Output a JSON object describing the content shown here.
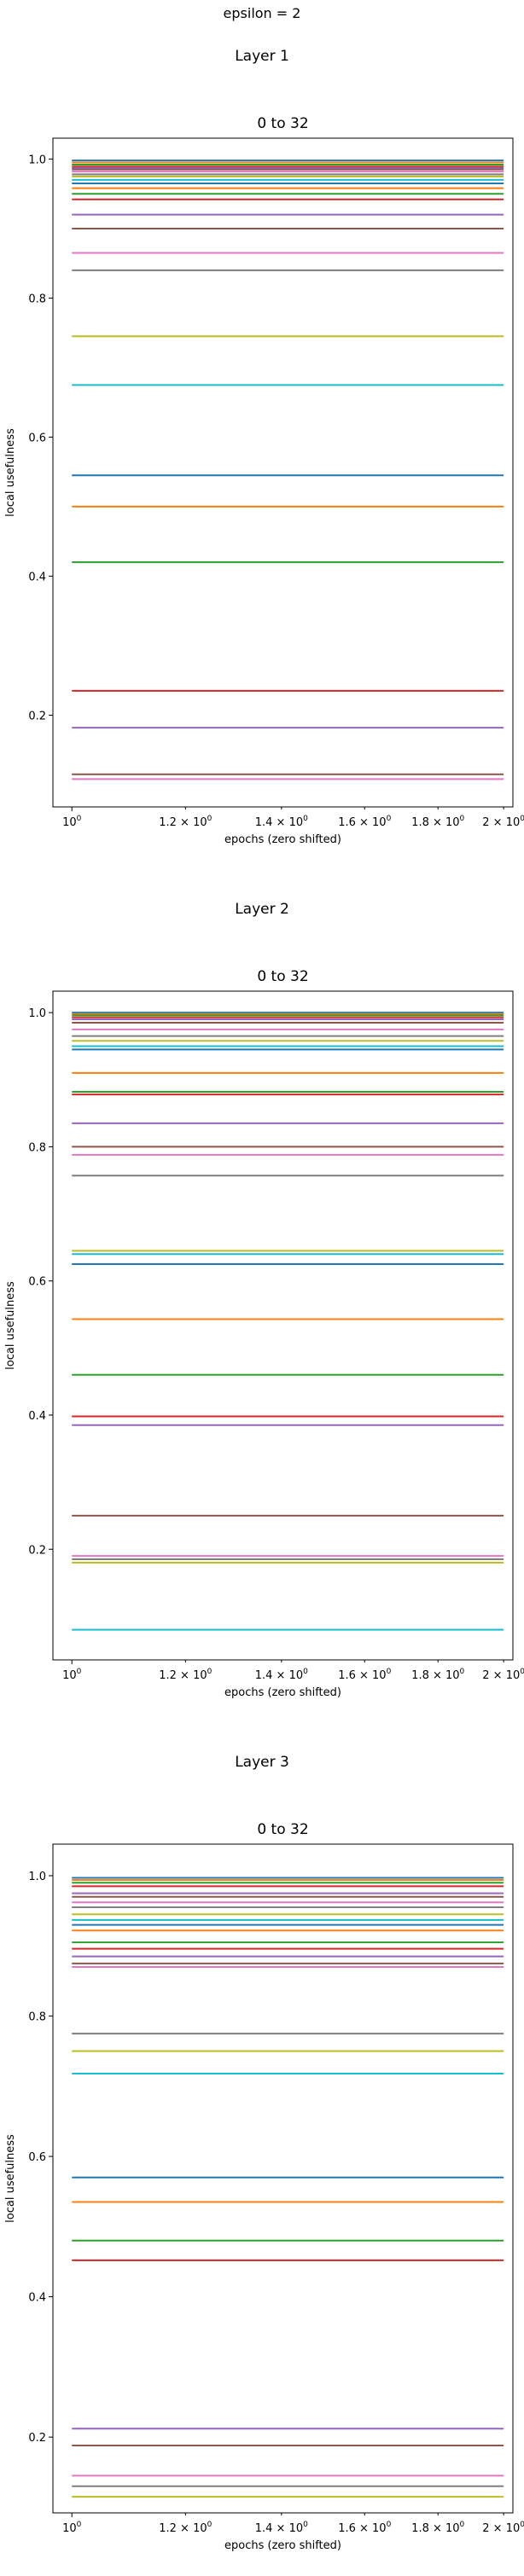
{
  "page": {
    "suptitle": "epsilon = 2"
  },
  "subplots": [
    {
      "layer_title": "Layer 1"
    },
    {
      "layer_title": "Layer 2"
    },
    {
      "layer_title": "Layer 3"
    }
  ],
  "chart_data": [
    {
      "type": "line",
      "title": "0 to 32",
      "xlabel": "epochs (zero shifted)",
      "ylabel": "local usefulness",
      "xscale": "log",
      "xlim": [
        0.97,
        2.03
      ],
      "ylim": [
        0.068,
        1.03
      ],
      "x": [
        1,
        2
      ],
      "x_ticks": [
        1.0,
        1.2,
        1.4,
        1.6,
        1.8,
        2.0
      ],
      "x_tick_labels": [
        {
          "base": "10",
          "exp": "0"
        },
        {
          "base": "1.2 × 10",
          "exp": "0"
        },
        {
          "base": "1.4 × 10",
          "exp": "0"
        },
        {
          "base": "1.6 × 10",
          "exp": "0"
        },
        {
          "base": "1.8 × 10",
          "exp": "0"
        },
        {
          "base": "2 × 10",
          "exp": "0"
        }
      ],
      "y_ticks": [
        0.2,
        0.4,
        0.6,
        0.8,
        1.0
      ],
      "y_tick_labels": [
        "0.2",
        "0.4",
        "0.6",
        "0.8",
        "1.0"
      ],
      "grid": false,
      "colors": [
        "#1f77b4",
        "#ff7f0e",
        "#2ca02c",
        "#d62728",
        "#9467bd",
        "#8c564b",
        "#e377c2",
        "#7f7f7f",
        "#bcbd22",
        "#17becf"
      ],
      "series_values": [
        0.998,
        0.995,
        0.992,
        0.989,
        0.987,
        0.985,
        0.982,
        0.978,
        0.975,
        0.97,
        0.965,
        0.958,
        0.95,
        0.942,
        0.92,
        0.9,
        0.865,
        0.84,
        0.745,
        0.675,
        0.545,
        0.5,
        0.42,
        0.235,
        0.182,
        0.115,
        0.108
      ]
    },
    {
      "type": "line",
      "title": "0 to 32",
      "xlabel": "epochs (zero shifted)",
      "ylabel": "local usefulness",
      "xscale": "log",
      "xlim": [
        0.97,
        2.03
      ],
      "ylim": [
        0.035,
        1.032
      ],
      "x": [
        1,
        2
      ],
      "x_ticks": [
        1.0,
        1.2,
        1.4,
        1.6,
        1.8,
        2.0
      ],
      "x_tick_labels": [
        {
          "base": "10",
          "exp": "0"
        },
        {
          "base": "1.2 × 10",
          "exp": "0"
        },
        {
          "base": "1.4 × 10",
          "exp": "0"
        },
        {
          "base": "1.6 × 10",
          "exp": "0"
        },
        {
          "base": "1.8 × 10",
          "exp": "0"
        },
        {
          "base": "2 × 10",
          "exp": "0"
        }
      ],
      "y_ticks": [
        0.2,
        0.4,
        0.6,
        0.8,
        1.0
      ],
      "y_tick_labels": [
        "0.2",
        "0.4",
        "0.6",
        "0.8",
        "1.0"
      ],
      "grid": false,
      "colors": [
        "#1f77b4",
        "#ff7f0e",
        "#2ca02c",
        "#d62728",
        "#9467bd",
        "#8c564b",
        "#e377c2",
        "#7f7f7f",
        "#bcbd22",
        "#17becf"
      ],
      "series_values": [
        1.0,
        0.998,
        0.996,
        0.993,
        0.99,
        0.985,
        0.975,
        0.965,
        0.958,
        0.95,
        0.945,
        0.91,
        0.882,
        0.878,
        0.835,
        0.8,
        0.788,
        0.757,
        0.645,
        0.64,
        0.625,
        0.543,
        0.46,
        0.398,
        0.385,
        0.25,
        0.19,
        0.185,
        0.18,
        0.08
      ]
    },
    {
      "type": "line",
      "title": "0 to 32",
      "xlabel": "epochs (zero shifted)",
      "ylabel": "local usefulness",
      "xscale": "log",
      "xlim": [
        0.97,
        2.03
      ],
      "ylim": [
        0.092,
        1.045
      ],
      "x": [
        1,
        2
      ],
      "x_ticks": [
        1.0,
        1.2,
        1.4,
        1.6,
        1.8,
        2.0
      ],
      "x_tick_labels": [
        {
          "base": "10",
          "exp": "0"
        },
        {
          "base": "1.2 × 10",
          "exp": "0"
        },
        {
          "base": "1.4 × 10",
          "exp": "0"
        },
        {
          "base": "1.6 × 10",
          "exp": "0"
        },
        {
          "base": "1.8 × 10",
          "exp": "0"
        },
        {
          "base": "2 × 10",
          "exp": "0"
        }
      ],
      "y_ticks": [
        0.2,
        0.4,
        0.6,
        0.8,
        1.0
      ],
      "y_tick_labels": [
        "0.2",
        "0.4",
        "0.6",
        "0.8",
        "1.0"
      ],
      "grid": false,
      "colors": [
        "#1f77b4",
        "#ff7f0e",
        "#2ca02c",
        "#d62728",
        "#9467bd",
        "#8c564b",
        "#e377c2",
        "#7f7f7f",
        "#bcbd22",
        "#17becf"
      ],
      "series_values": [
        0.997,
        0.994,
        0.99,
        0.985,
        0.975,
        0.97,
        0.962,
        0.955,
        0.945,
        0.937,
        0.93,
        0.922,
        0.905,
        0.896,
        0.885,
        0.875,
        0.87,
        0.775,
        0.75,
        0.718,
        0.57,
        0.535,
        0.48,
        0.452,
        0.212,
        0.188,
        0.145,
        0.13,
        0.115
      ]
    }
  ]
}
